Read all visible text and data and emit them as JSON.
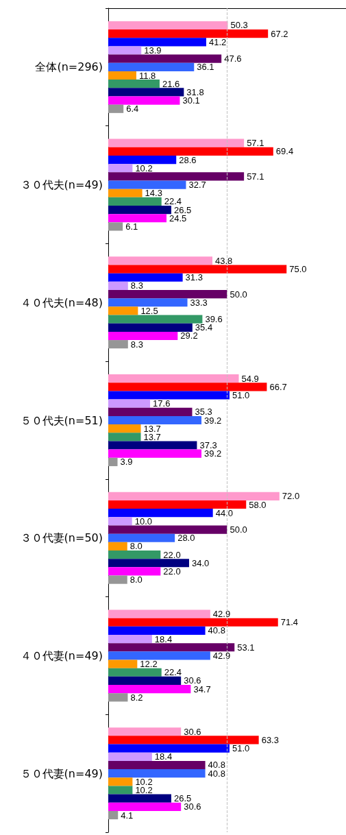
{
  "chart_data": {
    "type": "bar",
    "orientation": "horizontal",
    "tick_labels": "y",
    "xlim": [
      0,
      100
    ],
    "categories": [
      "全体(n=296)",
      "３０代夫(n=49)",
      "４０代夫(n=48)",
      "５０代夫(n=51)",
      "３０代妻(n=50)",
      "４０代妻(n=49)",
      "５０代妻(n=49)"
    ],
    "ref_lines": [
      {
        "axis": "x",
        "value": 50,
        "color": "#c0c0c0",
        "line_style": "dashed"
      }
    ],
    "series": [
      {
        "color": "#ff99cc",
        "values": [
          50.3,
          57.1,
          43.8,
          54.9,
          72.0,
          42.9,
          30.6
        ],
        "value_labels": [
          "50.3",
          "57.1",
          "43.8",
          "54.9",
          "72.0",
          "42.9",
          "30.6"
        ]
      },
      {
        "color": "#ff0000",
        "values": [
          67.2,
          69.4,
          75.0,
          66.7,
          58.0,
          71.4,
          63.3
        ],
        "value_labels": [
          "67.2",
          "69.4",
          "75.0",
          "66.7",
          "58.0",
          "71.4",
          "63.3"
        ]
      },
      {
        "color": "#0000ff",
        "values": [
          41.2,
          28.6,
          31.3,
          51.0,
          44.0,
          40.8,
          51.0
        ],
        "value_labels": [
          "41.2",
          "28.6",
          "31.3",
          "51.0",
          "44.0",
          "40.8",
          "51.0"
        ]
      },
      {
        "color": "#cc99ff",
        "values": [
          13.9,
          10.2,
          8.3,
          17.6,
          10.0,
          18.4,
          18.4
        ],
        "value_labels": [
          "13.9",
          "10.2",
          "8.3",
          "17.6",
          "10.0",
          "18.4",
          "18.4"
        ]
      },
      {
        "color": "#660066",
        "values": [
          47.6,
          57.1,
          50.0,
          35.3,
          50.0,
          53.1,
          40.8
        ],
        "value_labels": [
          "47.6",
          "57.1",
          "50.0",
          "35.3",
          "50.0",
          "53.1",
          "40.8"
        ]
      },
      {
        "color": "#3366ff",
        "values": [
          36.1,
          32.7,
          33.3,
          39.2,
          28.0,
          42.9,
          40.8
        ],
        "value_labels": [
          "36.1",
          "32.7",
          "33.3",
          "39.2",
          "28.0",
          "42.9",
          "40.8"
        ]
      },
      {
        "color": "#ff9900",
        "values": [
          11.8,
          14.3,
          12.5,
          13.7,
          8.0,
          12.2,
          10.2
        ],
        "value_labels": [
          "11.8",
          "14.3",
          "12.5",
          "13.7",
          "8.0",
          "12.2",
          "10.2"
        ]
      },
      {
        "color": "#339966",
        "values": [
          21.6,
          22.4,
          39.6,
          13.7,
          22.0,
          22.4,
          10.2
        ],
        "value_labels": [
          "21.6",
          "22.4",
          "39.6",
          "13.7",
          "22.0",
          "22.4",
          "10.2"
        ]
      },
      {
        "color": "#000080",
        "values": [
          31.8,
          26.5,
          35.4,
          37.3,
          34.0,
          30.6,
          26.5
        ],
        "value_labels": [
          "31.8",
          "26.5",
          "35.4",
          "37.3",
          "34.0",
          "30.6",
          "26.5"
        ]
      },
      {
        "color": "#ff00ff",
        "values": [
          30.1,
          24.5,
          29.2,
          39.2,
          22.0,
          34.7,
          30.6
        ],
        "value_labels": [
          "30.1",
          "24.5",
          "29.2",
          "39.2",
          "22.0",
          "34.7",
          "30.6"
        ]
      },
      {
        "color": "#969696",
        "values": [
          6.4,
          6.1,
          8.3,
          3.9,
          8.0,
          8.2,
          4.1
        ],
        "value_labels": [
          "6.4",
          "6.1",
          "8.3",
          "3.9",
          "8.0",
          "8.2",
          "4.1"
        ]
      }
    ]
  }
}
